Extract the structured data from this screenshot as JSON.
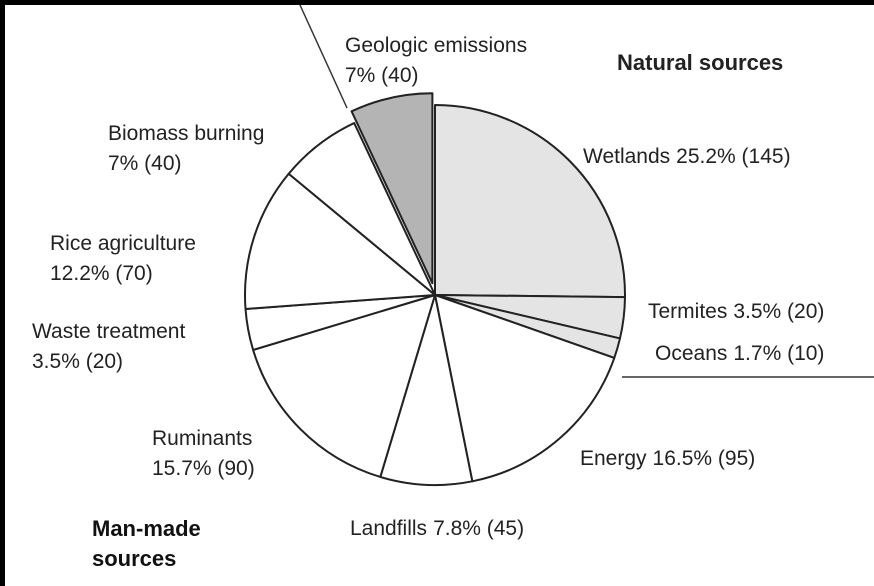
{
  "chart_data": {
    "type": "pie",
    "categories": [
      "Wetlands",
      "Termites",
      "Oceans",
      "Energy",
      "Landfills",
      "Ruminants",
      "Waste treatment",
      "Rice agriculture",
      "Biomass burning",
      "Geologic emissions"
    ],
    "values": [
      25.2,
      3.5,
      1.7,
      16.5,
      7.8,
      15.7,
      3.5,
      12.2,
      7,
      7
    ],
    "value_labels": [
      "25.2% (145)",
      "3.5% (20)",
      "1.7% (10)",
      "16.5% (95)",
      "7.8% (45)",
      "15.7% (90)",
      "3.5% (20)",
      "12.2% (70)",
      "7% (40)",
      "7% (40)"
    ],
    "colors": [
      "#e4e4e4",
      "#e4e4e4",
      "#e4e4e4",
      "#ffffff",
      "#ffffff",
      "#ffffff",
      "#ffffff",
      "#ffffff",
      "#ffffff",
      "#b4b4b4"
    ],
    "explode": [
      false,
      false,
      false,
      false,
      false,
      false,
      false,
      false,
      false,
      true
    ],
    "natural_label": "Natural sources",
    "man_made_label": "Man-made sources"
  }
}
